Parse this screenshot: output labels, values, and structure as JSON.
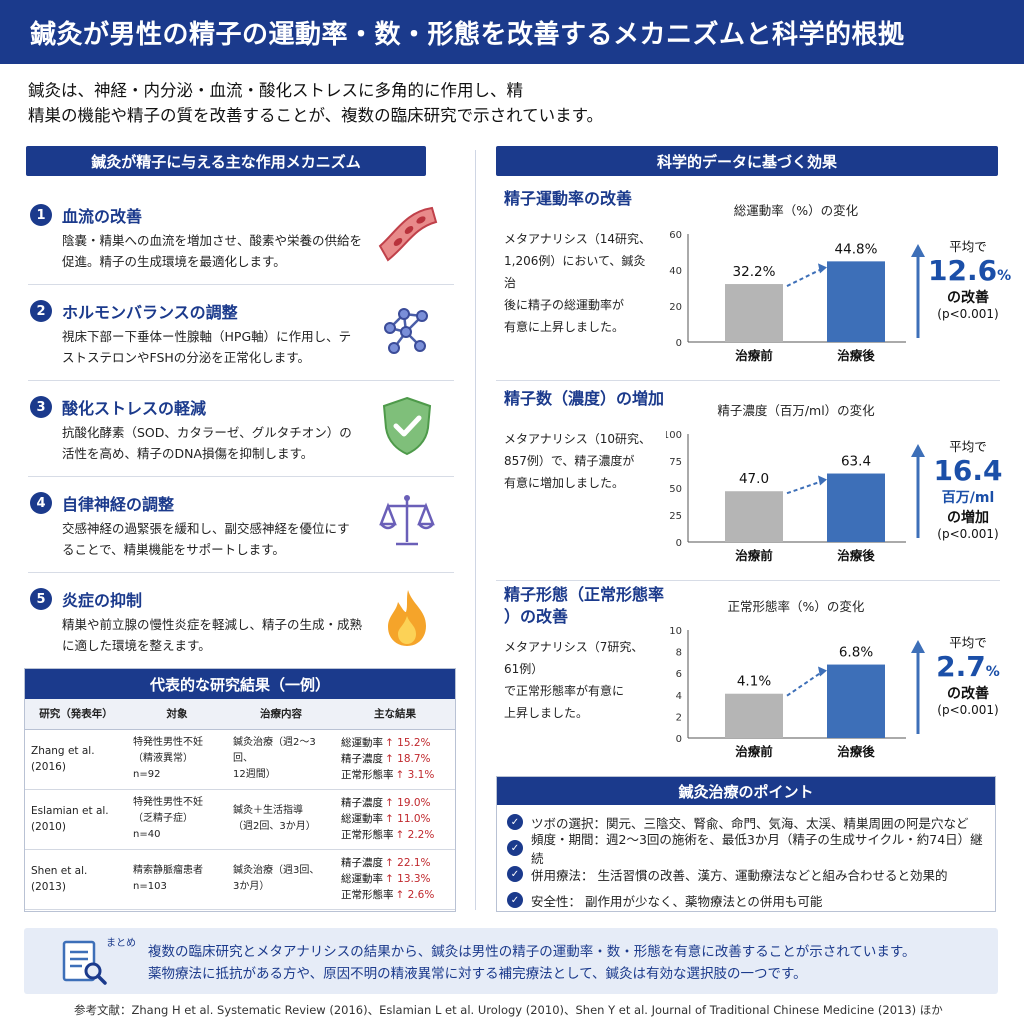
{
  "header": {
    "title": "鍼灸が男性の精子の運動率・数・形態を改善するメカニズムと科学的根拠"
  },
  "intro": {
    "line1": "鍼灸は、神経・内分泌・血流・酸化ストレスに多角的に作用し、精",
    "line2": "精巣の機能や精子の質を改善することが、複数の臨床研究で示されています。"
  },
  "mechanisms": {
    "heading": "鍼灸が精子に与える主な作用メカニズム",
    "items": [
      {
        "num": "1",
        "title": "血流の改善",
        "desc": "陰嚢・精巣への血流を増加させ、酸素や栄養の供給を促進。精子の生成環境を最適化します。",
        "icon": "blood-vessel-icon"
      },
      {
        "num": "2",
        "title": "ホルモンバランスの調整",
        "desc": "視床下部ー下垂体ー性腺軸（HPG軸）に作用し、テストステロンやFSHの分泌を正常化します。",
        "icon": "molecule-network-icon"
      },
      {
        "num": "3",
        "title": "酸化ストレスの軽減",
        "desc": "抗酸化酵素（SOD、カタラーゼ、グルタチオン）の活性を高め、精子のDNA損傷を抑制します。",
        "icon": "shield-icon"
      },
      {
        "num": "4",
        "title": "自律神経の調整",
        "desc": "交感神経の過緊張を緩和し、副交感神経を優位にすることで、精巣機能をサポートします。",
        "icon": "balance-scale-icon"
      },
      {
        "num": "5",
        "title": "炎症の抑制",
        "desc": "精巣や前立腺の慢性炎症を軽減し、精子の生成・成熟に適した環境を整えます。",
        "icon": "flame-icon"
      }
    ]
  },
  "studies": {
    "heading": "代表的な研究結果（一例）",
    "columns": [
      "研究（発表年）",
      "対象",
      "治療内容",
      "主な結果"
    ],
    "rows": [
      {
        "study": [
          "Zhang et al.",
          "(2016)"
        ],
        "target": [
          "特発性男性不妊",
          "（精液異常）",
          "n=92"
        ],
        "treatment": [
          "鍼灸治療（週2〜3回、",
          "12週間）"
        ],
        "results": [
          [
            "総運動率",
            "↑ 15.2%"
          ],
          [
            "精子濃度",
            "↑ 18.7%"
          ],
          [
            "正常形態率",
            "↑ 3.1%"
          ]
        ]
      },
      {
        "study": [
          "Eslamian et al.",
          "(2010)"
        ],
        "target": [
          "特発性男性不妊",
          "（乏精子症）",
          "n=40"
        ],
        "treatment": [
          "鍼灸＋生活指導",
          "（週2回、3か月）"
        ],
        "results": [
          [
            "精子濃度",
            "↑ 19.0%"
          ],
          [
            "総運動率",
            "↑ 11.0%"
          ],
          [
            "正常形態率",
            "↑ 2.2%"
          ]
        ]
      },
      {
        "study": [
          "Shen et al.",
          "(2013)"
        ],
        "target": [
          "精索静脈瘤患者",
          "n=103"
        ],
        "treatment": [
          "鍼灸治療（週3回、",
          "3か月）"
        ],
        "results": [
          [
            "精子濃度",
            "↑ 22.1%"
          ],
          [
            "総運動率",
            "↑ 13.3%"
          ],
          [
            "正常形態率",
            "↑ 2.6%"
          ]
        ]
      }
    ]
  },
  "evidence": {
    "heading": "科学的データに基づく効果",
    "blocks": [
      {
        "title": [
          "精子運動率の改善"
        ],
        "note": [
          "メタアナリシス（14研究、",
          "1,206例）において、鍼灸治",
          "後に精子の総運動率が",
          "有意に上昇しました。"
        ],
        "avg": {
          "l1": "平均で",
          "big": "12.6",
          "unit": "%",
          "l3": "の改善",
          "p": "(p<0.001)"
        }
      },
      {
        "title": [
          "精子数（濃度）の増加"
        ],
        "note": [
          "メタアナリシス（10研究、",
          "857例）で、精子濃度が",
          "有意に増加しました。"
        ],
        "avg": {
          "l1": "平均で",
          "big": "16.4",
          "unit": "百万/ml",
          "l3": "の増加",
          "p": "(p<0.001)"
        }
      },
      {
        "title": [
          "精子形態（正常形態率",
          "）の改善"
        ],
        "note": [
          "メタアナリシス（7研究、61例）",
          "で正常形態率が有意に",
          "上昇しました。"
        ],
        "avg": {
          "l1": "平均で",
          "big": "2.7",
          "unit": "%",
          "l3": "の改善",
          "p": "(p<0.001)"
        }
      }
    ]
  },
  "chart_data": [
    {
      "type": "bar",
      "title": "総運動率（%）の変化",
      "categories": [
        "治療前",
        "治療後"
      ],
      "values": [
        32.2,
        44.8
      ],
      "value_labels": [
        "32.2%",
        "44.8%"
      ],
      "ylim": [
        0,
        60
      ],
      "yticks": [
        0,
        20,
        40,
        60
      ],
      "colors": [
        "#b5b5b5",
        "#3d6fb8"
      ]
    },
    {
      "type": "bar",
      "title": "精子濃度（百万/ml）の変化",
      "categories": [
        "治療前",
        "治療後"
      ],
      "values": [
        47.0,
        63.4
      ],
      "value_labels": [
        "47.0",
        "63.4"
      ],
      "ylim": [
        0,
        100
      ],
      "yticks": [
        0,
        25,
        50,
        75,
        100
      ],
      "colors": [
        "#b5b5b5",
        "#3d6fb8"
      ]
    },
    {
      "type": "bar",
      "title": "正常形態率（%）の変化",
      "categories": [
        "治療前",
        "治療後"
      ],
      "values": [
        4.1,
        6.8
      ],
      "value_labels": [
        "4.1%",
        "6.8%"
      ],
      "ylim": [
        0,
        10
      ],
      "yticks": [
        0,
        2,
        4,
        6,
        8,
        10
      ],
      "colors": [
        "#b5b5b5",
        "#3d6fb8"
      ]
    }
  ],
  "points": {
    "heading": "鍼灸治療のポイント",
    "items": [
      "ツボの選択：関元、三陰交、腎兪、命門、気海、太渓、精巣周囲の阿是穴など",
      "頻度・期間：週2〜3回の施術を、最低3か月（精子の生成サイクル・約74日）継続",
      "併用療法：  生活習慣の改善、漢方、運動療法などと組み合わせると効果的",
      "安全性：     副作用が少なく、薬物療法との併用も可能"
    ]
  },
  "summary": {
    "tag": "まとめ",
    "line1": "複数の臨床研究とメタアナリシスの結果から、鍼灸は男性の精子の運動率・数・形態を有意に改善することが示されています。",
    "line2": "薬物療法に抵抗がある方や、原因不明の精液異常に対する補完療法として、鍼灸は有効な選択肢の一つです。"
  },
  "references": "参考文献：Zhang H et al. Systematic Review (2016)、Eslamian L et al. Urology (2010)、Shen Y et al. Journal of Traditional Chinese Medicine (2013) ほか"
}
